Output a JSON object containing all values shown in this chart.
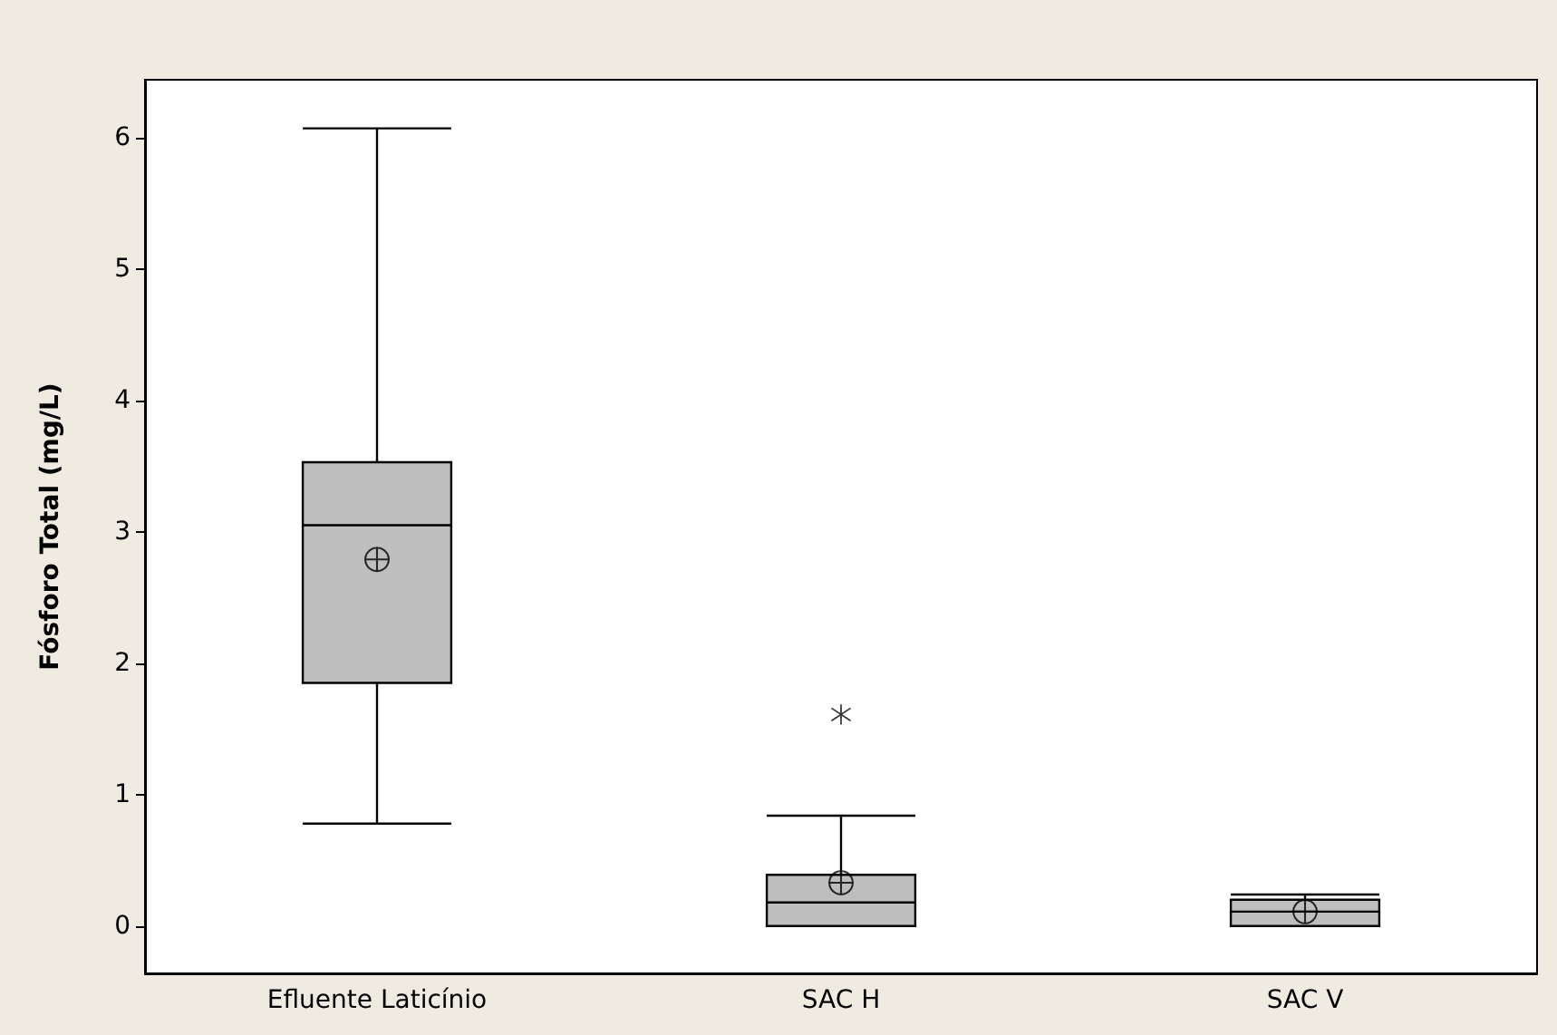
{
  "chart_data": {
    "type": "box",
    "ylabel": "Fósforo Total (mg/L)",
    "categories": [
      "Efluente Laticínio",
      "SAC H",
      "SAC V"
    ],
    "series": [
      {
        "color": "#bebebe",
        "boxes": [
          {
            "low": 0.78,
            "q1": 1.85,
            "median": 3.05,
            "q3": 3.53,
            "high": 6.07,
            "mean": 2.79
          },
          {
            "low": 0,
            "q1": 0,
            "median": 0.18,
            "q3": 0.39,
            "high": 0.84,
            "mean": 0.33,
            "outliers": [
              1.61
            ]
          },
          {
            "low": 0,
            "q1": 0,
            "median": 0.11,
            "q3": 0.2,
            "high": 0.24,
            "mean": 0.11
          }
        ]
      }
    ],
    "ylim": [
      -0.36,
      6.44
    ],
    "yticks": [
      0,
      1,
      2,
      3,
      4,
      5,
      6
    ]
  }
}
